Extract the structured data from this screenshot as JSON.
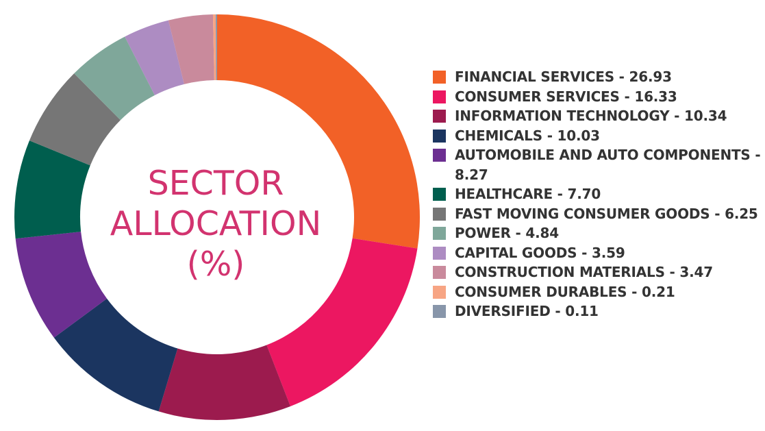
{
  "chart_data": {
    "type": "pie",
    "title": [
      "SECTOR",
      "ALLOCATION",
      "(%)"
    ],
    "series": [
      {
        "name": "FINANCIAL SERVICES",
        "value": 26.93,
        "label": "FINANCIAL SERVICES - 26.93",
        "color": "#f26127"
      },
      {
        "name": "CONSUMER SERVICES",
        "value": 16.33,
        "label": "CONSUMER SERVICES - 16.33",
        "color": "#ec1761"
      },
      {
        "name": "INFORMATION TECHNOLOGY",
        "value": 10.34,
        "label": "INFORMATION TECHNOLOGY - 10.34",
        "color": "#9c1b4e"
      },
      {
        "name": "CHEMICALS",
        "value": 10.03,
        "label": "CHEMICALS - 10.03",
        "color": "#1b3560"
      },
      {
        "name": "AUTOMOBILE AND AUTO COMPONENTS",
        "value": 8.27,
        "label": "AUTOMOBILE AND AUTO COMPONENTS - 8.27",
        "color": "#6c2f91"
      },
      {
        "name": "HEALTHCARE",
        "value": 7.7,
        "label": "HEALTHCARE - 7.70",
        "color": "#005e4e"
      },
      {
        "name": "FAST MOVING CONSUMER GOODS",
        "value": 6.25,
        "label": "FAST MOVING CONSUMER GOODS - 6.25",
        "color": "#767676"
      },
      {
        "name": "POWER",
        "value": 4.84,
        "label": "POWER - 4.84",
        "color": "#7fa79a"
      },
      {
        "name": "CAPITAL GOODS",
        "value": 3.59,
        "label": "CAPITAL GOODS - 3.59",
        "color": "#ad8cc2"
      },
      {
        "name": "CONSTRUCTION MATERIALS",
        "value": 3.47,
        "label": "CONSTRUCTION MATERIALS - 3.47",
        "color": "#c98a9c"
      },
      {
        "name": "CONSUMER DURABLES",
        "value": 0.21,
        "label": "CONSUMER DURABLES - 0.21",
        "color": "#f7a584"
      },
      {
        "name": "DIVERSIFIED",
        "value": 0.11,
        "label": "DIVERSIFIED - 0.11",
        "color": "#8896aa"
      }
    ],
    "legend_position": "right",
    "style": "donut"
  }
}
